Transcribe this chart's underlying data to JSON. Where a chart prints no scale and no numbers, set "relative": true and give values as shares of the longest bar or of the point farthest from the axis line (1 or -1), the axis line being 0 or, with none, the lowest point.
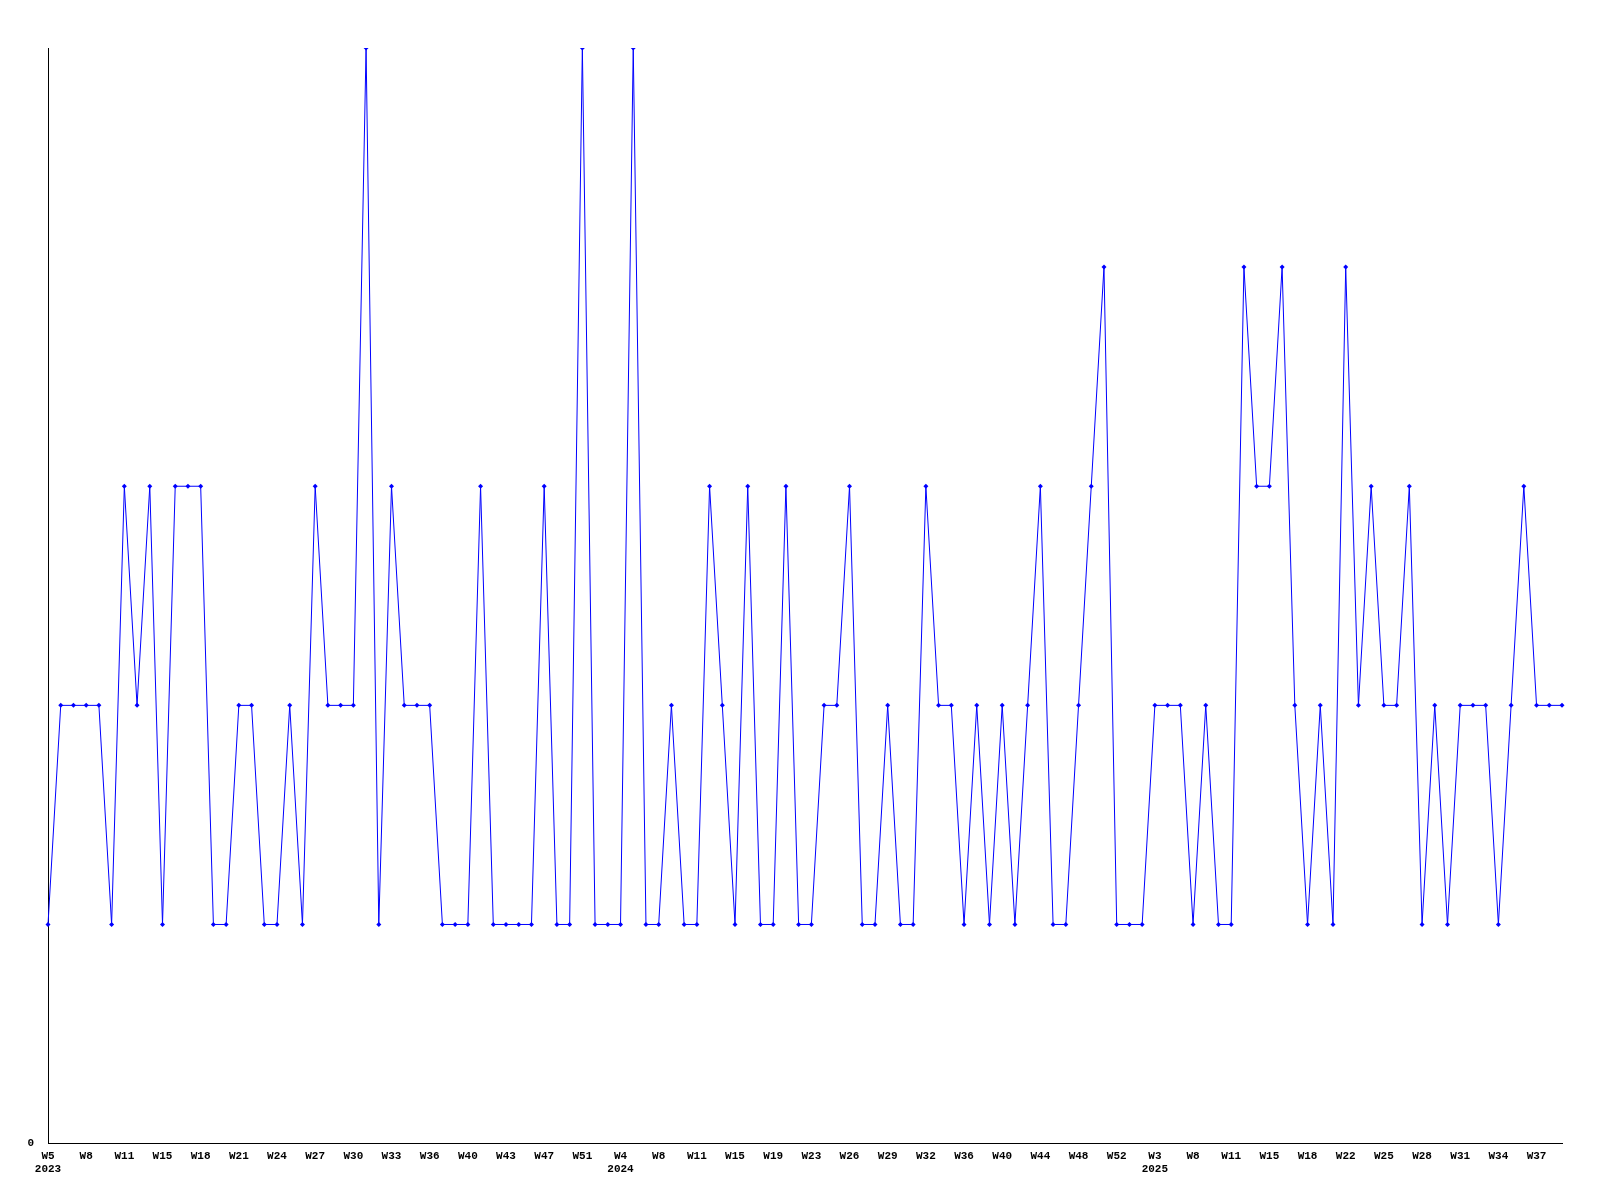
{
  "chart_data": {
    "type": "line",
    "relative": true,
    "marker": "diamond",
    "line_style": "solid",
    "grid": false,
    "legend": false,
    "categories": [
      "W5\n2023",
      null,
      null,
      "W8",
      null,
      null,
      "W11",
      null,
      null,
      "W15",
      null,
      null,
      "W18",
      null,
      null,
      "W21",
      null,
      null,
      "W24",
      null,
      null,
      "W27",
      null,
      null,
      "W30",
      null,
      null,
      "W33",
      null,
      null,
      "W36",
      null,
      null,
      "W40",
      null,
      null,
      "W43",
      null,
      null,
      "W47",
      null,
      null,
      "W51",
      null,
      null,
      "W4\n2024",
      null,
      null,
      "W8",
      null,
      null,
      "W11",
      null,
      null,
      "W15",
      null,
      null,
      "W19",
      null,
      null,
      "W23",
      null,
      null,
      "W26",
      null,
      null,
      "W29",
      null,
      null,
      "W32",
      null,
      null,
      "W36",
      null,
      null,
      "W40",
      null,
      null,
      "W44",
      null,
      null,
      "W48",
      null,
      null,
      "W52",
      null,
      null,
      "W3\n2025",
      null,
      null,
      "W8",
      null,
      null,
      "W11",
      null,
      null,
      "W15",
      null,
      null,
      "W18",
      null,
      null,
      "W22",
      null,
      null,
      "W25",
      null,
      null,
      "W28",
      null,
      null,
      "W31",
      null,
      null,
      "W34",
      null,
      null,
      "W37",
      null,
      null
    ],
    "series": [
      {
        "color": "#0000ff",
        "values": [
          0.2,
          0.4,
          0.4,
          0.4,
          0.4,
          0.2,
          0.6,
          0.4,
          0.6,
          0.2,
          0.6,
          0.6,
          0.6,
          0.2,
          0.2,
          0.4,
          0.4,
          0.2,
          0.2,
          0.4,
          0.2,
          0.6,
          0.4,
          0.4,
          0.4,
          1,
          0.2,
          0.6,
          0.4,
          0.4,
          0.4,
          0.2,
          0.2,
          0.2,
          0.6,
          0.2,
          0.2,
          0.2,
          0.2,
          0.6,
          0.2,
          0.2,
          1,
          0.2,
          0.2,
          0.2,
          1,
          0.2,
          0.2,
          0.4,
          0.2,
          0.2,
          0.6,
          0.4,
          0.2,
          0.6,
          0.2,
          0.2,
          0.6,
          0.2,
          0.2,
          0.4,
          0.4,
          0.6,
          0.2,
          0.2,
          0.4,
          0.2,
          0.2,
          0.6,
          0.4,
          0.4,
          0.2,
          0.4,
          0.2,
          0.4,
          0.2,
          0.4,
          0.6,
          0.2,
          0.2,
          0.4,
          0.6,
          0.8,
          0.2,
          0.2,
          0.2,
          0.4,
          0.4,
          0.4,
          0.2,
          0.4,
          0.2,
          0.2,
          0.8,
          0.6,
          0.6,
          0.8,
          0.4,
          0.2,
          0.4,
          0.2,
          0.8,
          0.4,
          0.6,
          0.4,
          0.4,
          0.6,
          0.2,
          0.4,
          0.2,
          0.4,
          0.4,
          0.4,
          0.2,
          0.4,
          0.6,
          0.4,
          0.4,
          0.4
        ]
      }
    ],
    "annotations": [
      "0"
    ]
  }
}
